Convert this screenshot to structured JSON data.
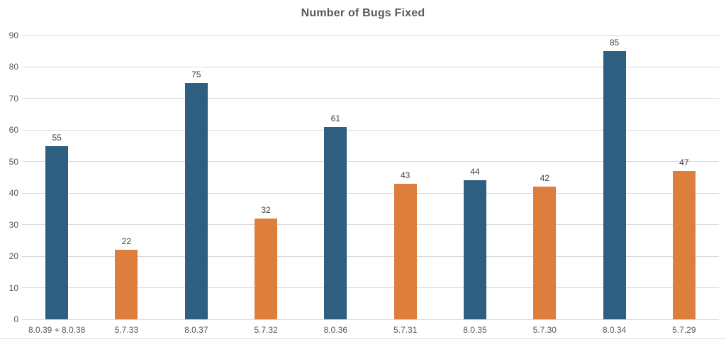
{
  "chart_data": {
    "type": "bar",
    "title": "Number of Bugs Fixed",
    "categories": [
      "8.0.39 + 8.0.38",
      "5.7.33",
      "8.0.37",
      "5.7.32",
      "8.0.36",
      "5.7.31",
      "8.0.35",
      "5.7.30",
      "8.0.34",
      "5.7.29"
    ],
    "values": [
      55,
      22,
      75,
      32,
      61,
      43,
      44,
      42,
      85,
      47
    ],
    "bar_colors": [
      "#2e5f81",
      "#dd7e3c",
      "#2e5f81",
      "#dd7e3c",
      "#2e5f81",
      "#dd7e3c",
      "#2e5f81",
      "#dd7e3c",
      "#2e5f81",
      "#dd7e3c"
    ],
    "xlabel": "",
    "ylabel": "",
    "ylim": [
      0,
      90
    ],
    "y_ticks": [
      0,
      10,
      20,
      30,
      40,
      50,
      60,
      70,
      80,
      90
    ],
    "grid": true,
    "legend": "none",
    "value_labels_shown": true,
    "colors": {
      "bar_blue": "#2e5f81",
      "bar_orange": "#dd7e3c",
      "gridline": "#d9d9d9",
      "title_text": "#595959",
      "axis_text": "#595959",
      "value_text": "#404040",
      "background": "#ffffff"
    }
  }
}
